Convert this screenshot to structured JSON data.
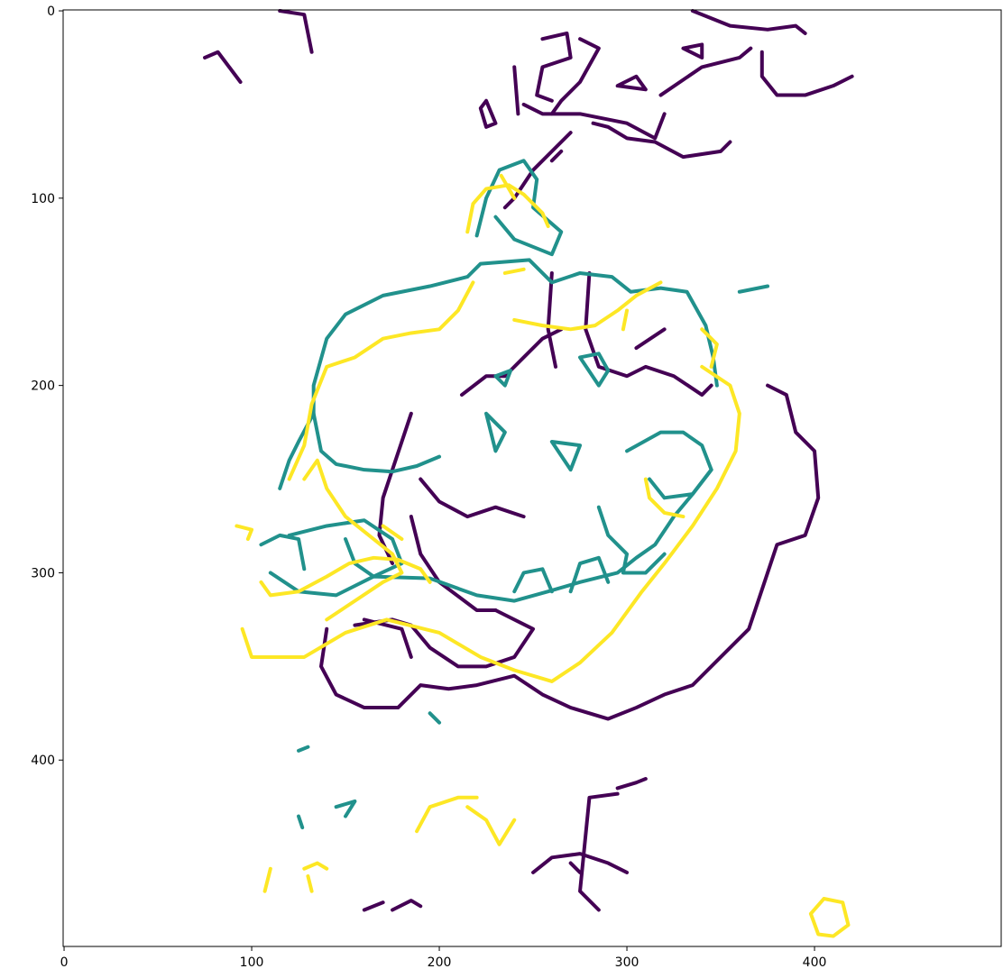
{
  "chart_data": {
    "type": "image",
    "xlim": [
      -0.5,
      499.5
    ],
    "ylim": [
      499.5,
      -0.5
    ],
    "xticks": [
      0,
      100,
      200,
      300,
      400
    ],
    "yticks": [
      0,
      100,
      200,
      300,
      400
    ]
  }
}
